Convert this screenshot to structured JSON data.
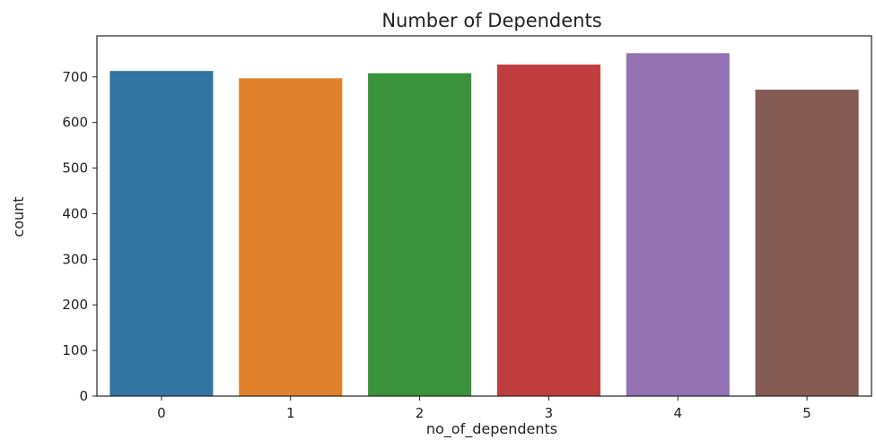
{
  "chart_data": {
    "type": "bar",
    "title": "Number of Dependents",
    "xlabel": "no_of_dependents",
    "ylabel": "count",
    "categories": [
      "0",
      "1",
      "2",
      "3",
      "4",
      "5"
    ],
    "values": [
      713,
      697,
      708,
      727,
      752,
      672
    ],
    "colors": [
      "#3274a1",
      "#e1812c",
      "#3a923a",
      "#c03d3e",
      "#9372b2",
      "#845b53"
    ],
    "ylim": [
      0,
      790
    ],
    "yticks": [
      0,
      100,
      200,
      300,
      400,
      500,
      600,
      700
    ],
    "grid": false,
    "legend": "none"
  }
}
